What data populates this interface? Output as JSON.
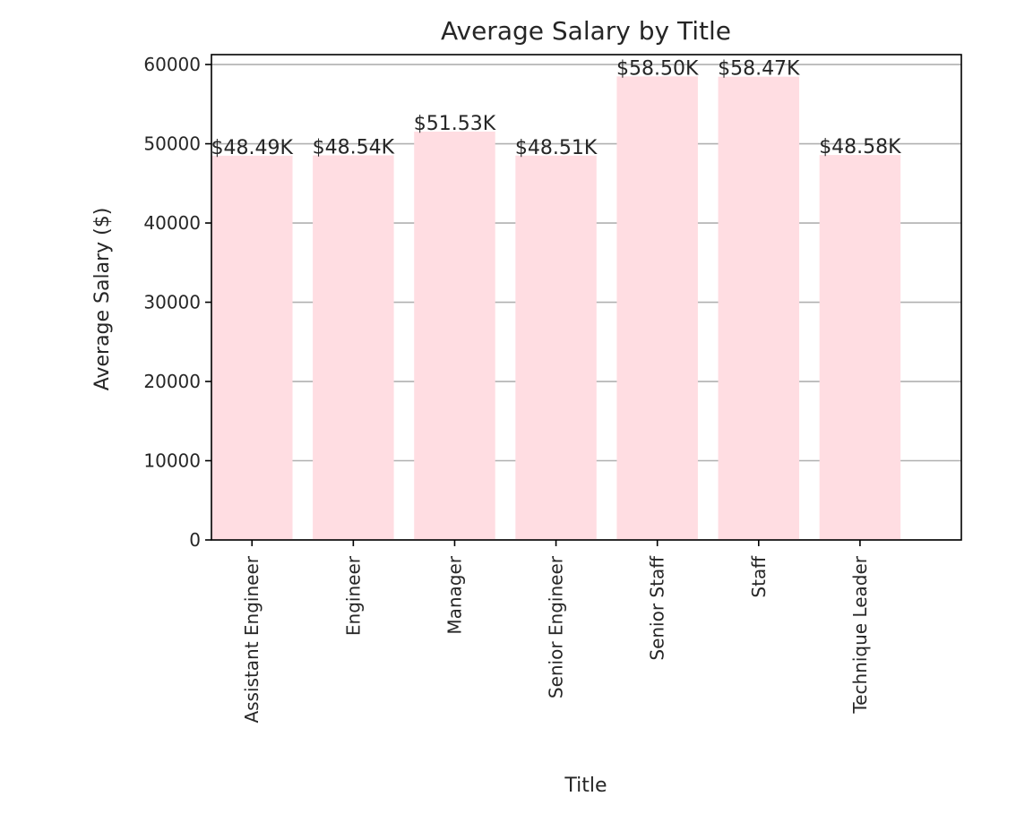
{
  "chart_data": {
    "type": "bar",
    "title": "Average Salary by Title",
    "xlabel": "Title",
    "ylabel": "Average Salary ($)",
    "categories": [
      "Assistant Engineer",
      "Engineer",
      "Manager",
      "Senior Engineer",
      "Senior Staff",
      "Staff",
      "Technique Leader"
    ],
    "values": [
      48493,
      48535,
      51531,
      48507,
      58503,
      58465,
      48583
    ],
    "value_labels": [
      "$48.49K",
      "$48.54K",
      "$51.53K",
      "$48.51K",
      "$58.50K",
      "$58.47K",
      "$48.58K"
    ],
    "ylim": [
      0,
      61250
    ],
    "yticks": [
      0,
      10000,
      20000,
      30000,
      40000,
      50000,
      60000
    ],
    "ytick_labels": [
      "0",
      "10000",
      "20000",
      "30000",
      "40000",
      "50000",
      "60000"
    ],
    "grid": "y",
    "colors": {
      "bar": "#ffdde2",
      "grid": "#b0b0b0",
      "axis": "#000000"
    }
  }
}
